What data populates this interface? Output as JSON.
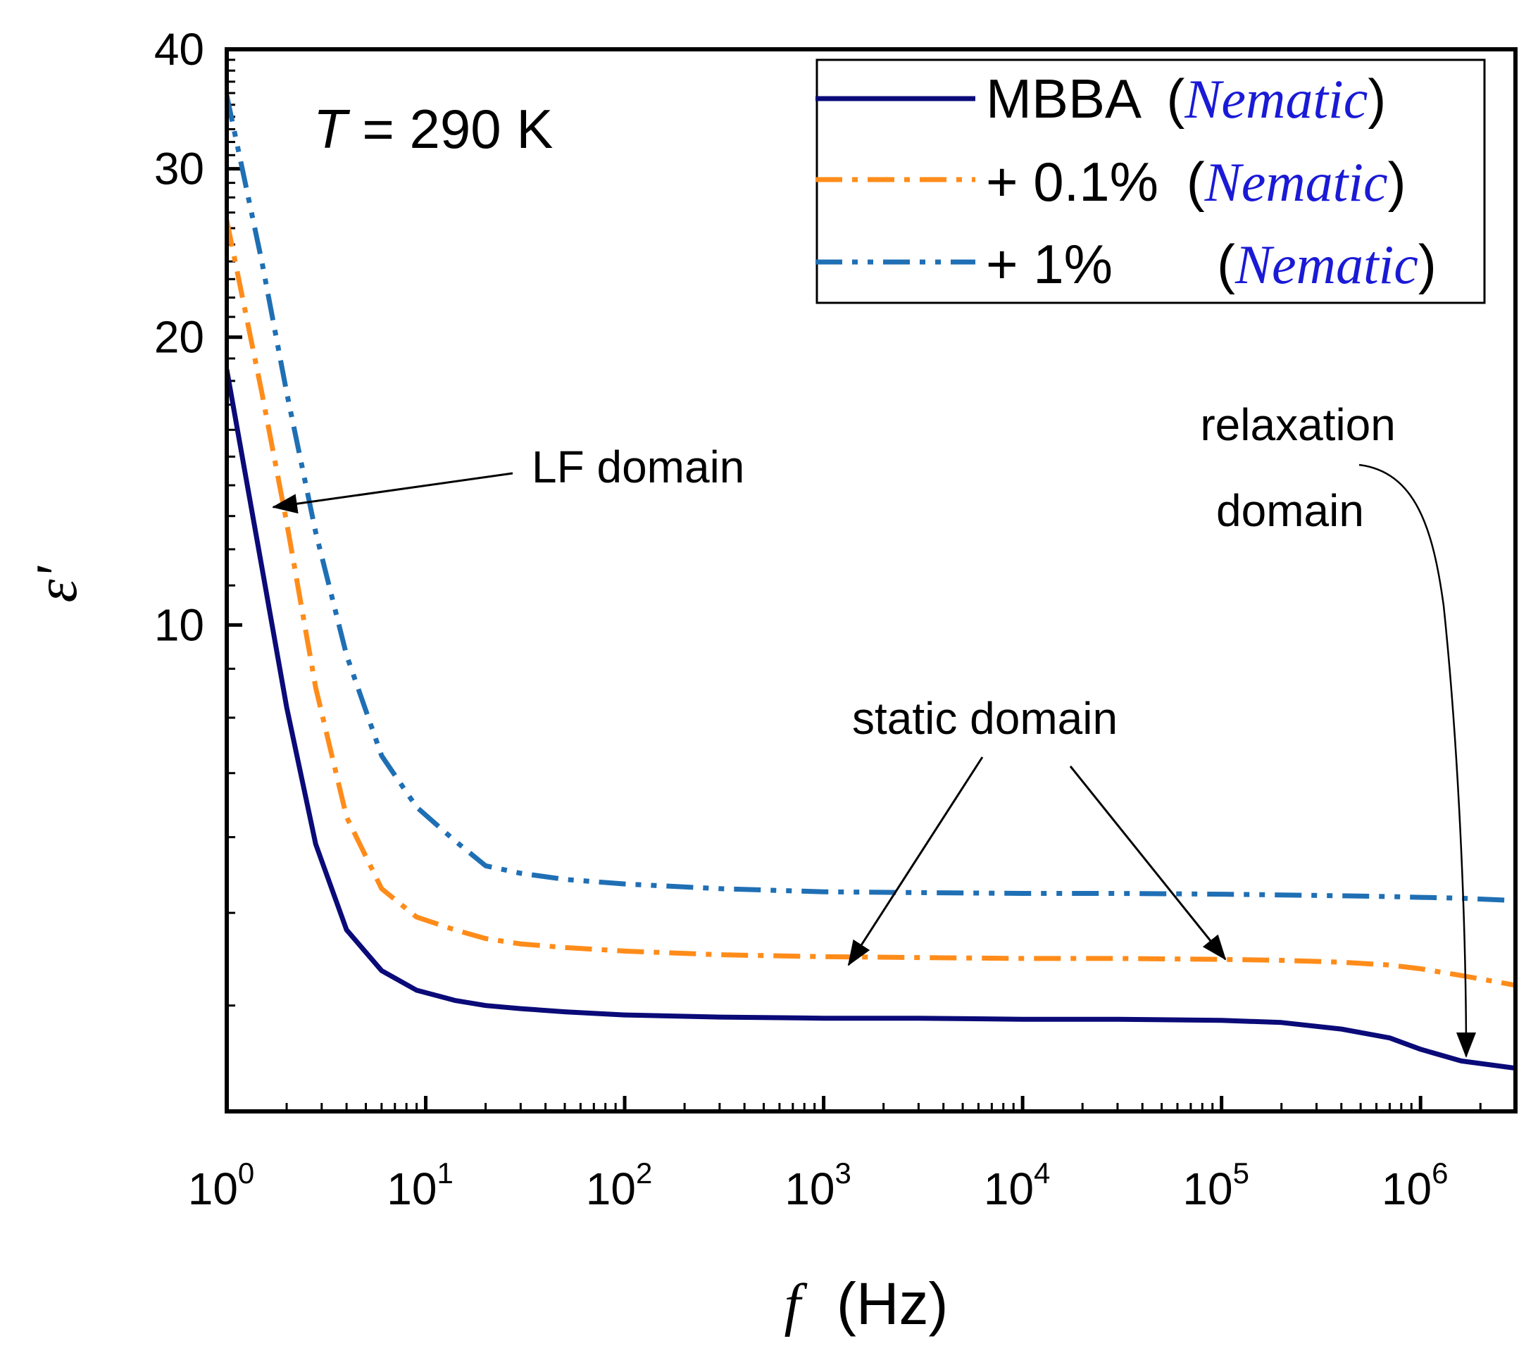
{
  "chart_data": {
    "type": "line",
    "title": "",
    "xlabel_symbol": "f",
    "xlabel_unit": "(Hz)",
    "ylabel": "ε'",
    "x_scale": "log",
    "y_scale": "log",
    "xlim": [
      1,
      3000000
    ],
    "ylim": [
      3.1,
      40
    ],
    "x_ticks": [
      {
        "base": "10",
        "exp": "0",
        "value": 1
      },
      {
        "base": "10",
        "exp": "1",
        "value": 10
      },
      {
        "base": "10",
        "exp": "2",
        "value": 100
      },
      {
        "base": "10",
        "exp": "3",
        "value": 1000
      },
      {
        "base": "10",
        "exp": "4",
        "value": 10000
      },
      {
        "base": "10",
        "exp": "5",
        "value": 100000
      },
      {
        "base": "10",
        "exp": "6",
        "value": 1000000
      }
    ],
    "y_ticks": [
      {
        "label": "10",
        "value": 10
      },
      {
        "label": "20",
        "value": 20
      },
      {
        "label": "30",
        "value": 30
      },
      {
        "label": "40",
        "value": 40
      }
    ],
    "temperature_label": {
      "symbol": "T",
      "text": " = 290 K"
    },
    "series": [
      {
        "name": "MBBA",
        "phase": "Nematic",
        "color": "#0a0a78",
        "style": "solid",
        "x": [
          1,
          1.5,
          2,
          2.8,
          4,
          6,
          9,
          14,
          20,
          30,
          50,
          100,
          300,
          1000,
          3000,
          10000,
          30000,
          100000,
          200000,
          400000,
          700000,
          1000000,
          1600000,
          3000000
        ],
        "y": [
          18.5,
          11.5,
          8.2,
          5.9,
          4.8,
          4.35,
          4.15,
          4.05,
          4.0,
          3.97,
          3.94,
          3.91,
          3.89,
          3.88,
          3.88,
          3.87,
          3.87,
          3.86,
          3.84,
          3.78,
          3.7,
          3.6,
          3.5,
          3.44
        ]
      },
      {
        "name": "+ 0.1%",
        "phase": "Nematic",
        "color": "#ff8c1a",
        "style": "dashdot",
        "x": [
          1,
          1.5,
          2,
          2.8,
          4,
          6,
          9,
          14,
          20,
          30,
          50,
          100,
          300,
          1000,
          3000,
          10000,
          30000,
          100000,
          200000,
          400000,
          700000,
          1000000,
          1600000,
          3000000
        ],
        "y": [
          26.5,
          17.5,
          12.8,
          8.6,
          6.3,
          5.3,
          4.95,
          4.8,
          4.7,
          4.64,
          4.6,
          4.56,
          4.52,
          4.5,
          4.49,
          4.48,
          4.48,
          4.47,
          4.46,
          4.44,
          4.41,
          4.37,
          4.3,
          4.2
        ]
      },
      {
        "name": "+ 1%",
        "phase": "Nematic",
        "color": "#1f6fb4",
        "style": "dashdotdot",
        "x": [
          1,
          1.5,
          2,
          2.8,
          4,
          6,
          9,
          14,
          20,
          30,
          50,
          100,
          300,
          1000,
          3000,
          10000,
          30000,
          100000,
          200000,
          400000,
          700000,
          1000000,
          1600000,
          3000000
        ],
        "y": [
          35.8,
          24,
          17.5,
          12.5,
          9.3,
          7.3,
          6.45,
          5.95,
          5.6,
          5.5,
          5.42,
          5.36,
          5.3,
          5.26,
          5.25,
          5.24,
          5.24,
          5.23,
          5.22,
          5.21,
          5.2,
          5.19,
          5.18,
          5.15
        ]
      }
    ],
    "annotations": [
      {
        "text": "LF domain"
      },
      {
        "text": "static domain"
      },
      {
        "line1": "relaxation",
        "line2": "domain"
      }
    ],
    "legend_position": "top-right",
    "grid": false
  }
}
